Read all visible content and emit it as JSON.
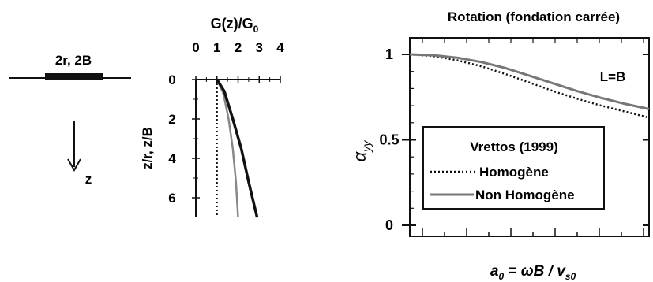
{
  "schematic": {
    "foundation_label": "2r, 2B",
    "depth_axis_label": "z"
  },
  "chart_data": [
    {
      "type": "line",
      "title": "",
      "xlabel_main": "G(z)/G",
      "xlabel_sub": "0",
      "ylabel": "z/r, z/B",
      "x_ticks": [
        0,
        1,
        2,
        3,
        4
      ],
      "y_ticks": [
        0,
        2,
        4,
        6
      ],
      "xlim": [
        0,
        4
      ],
      "ylim": [
        0,
        7
      ],
      "y_inverted": true,
      "x_axis_position": "top",
      "series": [
        {
          "style": "dotted-black",
          "x": [
            1,
            1
          ],
          "y": [
            0,
            7
          ]
        },
        {
          "style": "solid-gray",
          "x": [
            1.0,
            1.3,
            1.55,
            1.75,
            1.9,
            2.0
          ],
          "y": [
            0.0,
            0.7,
            2.0,
            3.5,
            5.2,
            7.0
          ]
        },
        {
          "style": "solid-black-thick",
          "x": [
            1.0,
            1.35,
            1.75,
            2.15,
            2.5,
            2.9
          ],
          "y": [
            0.0,
            0.6,
            2.0,
            3.5,
            5.2,
            7.0
          ]
        }
      ]
    },
    {
      "type": "line",
      "title": "Rotation (fondation carrée)",
      "ylabel_main": "α",
      "ylabel_sub": "yy",
      "xlabel": "a0 = ωB / vs0",
      "xlabel_parts": {
        "a": "a",
        "a_sub": "0",
        "eq": " = ωB / v",
        "v_sub": "s0"
      },
      "annotation": "L=B",
      "y_ticks": [
        "1",
        "0.5",
        "0"
      ],
      "y_tick_values": [
        1,
        0.5,
        0
      ],
      "ylim": [
        0,
        1
      ],
      "xlim": [
        0,
        1
      ],
      "legend": {
        "title": "Vrettos (1999)",
        "placement": "center-left",
        "entries": [
          "Homogène",
          "Non Homogène"
        ]
      },
      "series": [
        {
          "name": "Homogène",
          "style": "dotted",
          "x": [
            0,
            0.1,
            0.2,
            0.3,
            0.4,
            0.5,
            0.6,
            0.7,
            0.8,
            0.9,
            1.0
          ],
          "y": [
            1.0,
            0.99,
            0.965,
            0.93,
            0.885,
            0.835,
            0.785,
            0.74,
            0.7,
            0.665,
            0.63
          ]
        },
        {
          "name": "Non Homogène",
          "style": "solid-gray",
          "x": [
            0,
            0.1,
            0.2,
            0.3,
            0.4,
            0.5,
            0.6,
            0.7,
            0.8,
            0.9,
            1.0
          ],
          "y": [
            1.0,
            0.995,
            0.98,
            0.955,
            0.92,
            0.875,
            0.83,
            0.785,
            0.745,
            0.71,
            0.68
          ]
        }
      ]
    }
  ]
}
